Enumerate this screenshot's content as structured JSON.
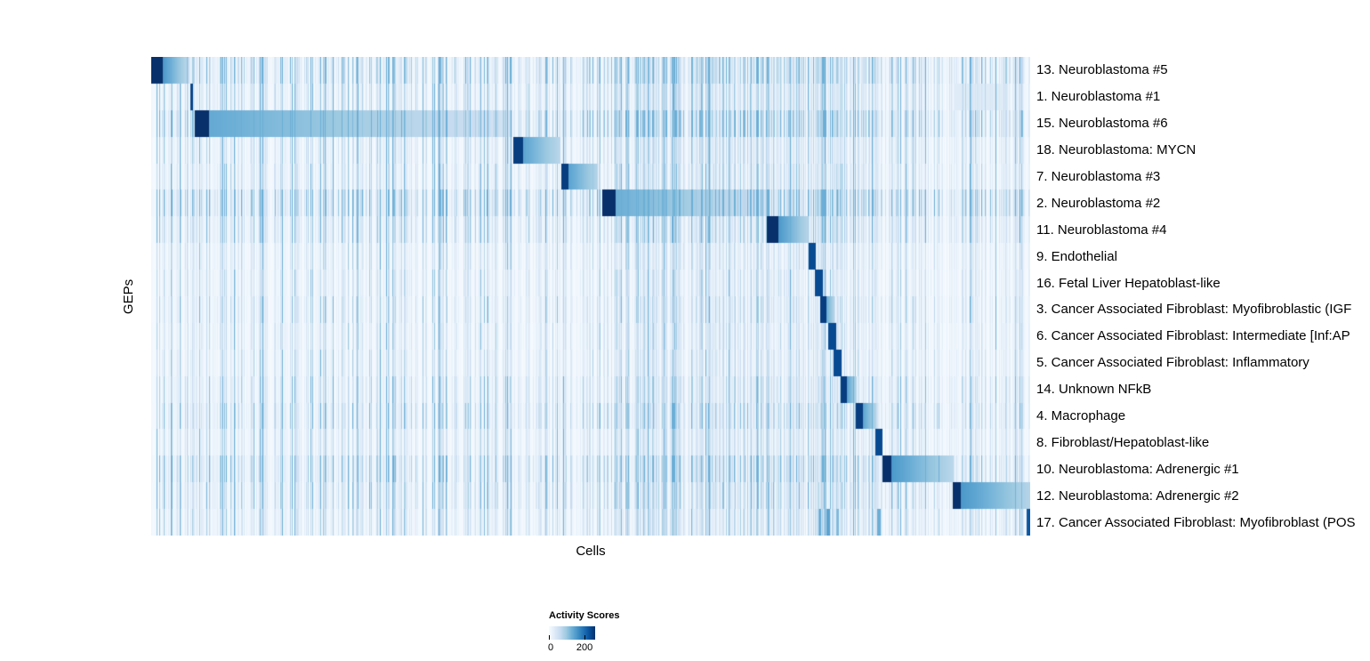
{
  "chart_data": {
    "type": "heatmap",
    "title": "",
    "xlabel": "Cells",
    "ylabel": "GEPs",
    "legend_position": "bottom",
    "colorbar": {
      "title": "Activity Scores",
      "min": 0,
      "max": 200,
      "min_label": "0",
      "max_label": "200",
      "max_label_frac": 0.77,
      "colormap": "Blues",
      "stops": [
        "#f7fbff",
        "#deebf7",
        "#c6dbef",
        "#9ecae1",
        "#6baed6",
        "#4292c6",
        "#2171b5",
        "#08519c",
        "#08306b"
      ]
    },
    "noise_bands": [
      {
        "start": 0.0,
        "end": 0.513,
        "level": 0.22,
        "pow": 4
      },
      {
        "start": 0.513,
        "end": 0.7,
        "level": 0.32,
        "pow": 2.5
      },
      {
        "start": 0.7,
        "end": 0.87,
        "level": 0.3,
        "pow": 2.5
      },
      {
        "start": 0.87,
        "end": 1.0,
        "level": 0.26,
        "pow": 3
      }
    ],
    "rows": [
      {
        "label": "13. Neuroblastoma #5",
        "start": 0.0,
        "end": 0.044,
        "head": 0.3,
        "peak": 1.0,
        "tail_hi": 0.6,
        "tail_lo": 0.25,
        "noise": 1.5
      },
      {
        "label": "1. Neuroblastoma #1",
        "start": 0.0445,
        "end": 0.0478,
        "head": 1.0,
        "peak": 0.92,
        "tail_hi": 0.92,
        "tail_lo": 0.92,
        "noise": 1.1,
        "marks": [
          {
            "pos": 0.945,
            "w": 0.06,
            "val": 0.12
          }
        ]
      },
      {
        "label": "15. Neuroblastoma #6",
        "start": 0.0496,
        "end": 0.411,
        "head": 0.045,
        "peak": 1.0,
        "tail_hi": 0.52,
        "tail_lo": 0.18,
        "noise": 1.7
      },
      {
        "label": "18. Neuroblastoma: MYCN",
        "start": 0.412,
        "end": 0.4656,
        "head": 0.2,
        "peak": 0.95,
        "tail_hi": 0.55,
        "tail_lo": 0.28,
        "noise": 1.0
      },
      {
        "label": "7. Neuroblastoma #3",
        "start": 0.4666,
        "end": 0.5081,
        "head": 0.2,
        "peak": 0.95,
        "tail_hi": 0.55,
        "tail_lo": 0.3,
        "noise": 1.0
      },
      {
        "label": "2. Neuroblastoma #2",
        "start": 0.5132,
        "end": 0.6994,
        "head": 0.08,
        "peak": 1.0,
        "tail_hi": 0.5,
        "tail_lo": 0.2,
        "noise": 1.8
      },
      {
        "label": "11. Neuroblastoma #4",
        "start": 0.7004,
        "end": 0.747,
        "head": 0.28,
        "peak": 1.0,
        "tail_hi": 0.6,
        "tail_lo": 0.3,
        "noise": 1.2
      },
      {
        "label": "9. Endothelial",
        "start": 0.748,
        "end": 0.7561,
        "head": 1.0,
        "peak": 0.9,
        "tail_hi": 0.9,
        "tail_lo": 0.9,
        "noise": 0.8
      },
      {
        "label": "16. Fetal Liver Hepatoblast-like",
        "start": 0.7551,
        "end": 0.7642,
        "head": 1.0,
        "peak": 0.9,
        "tail_hi": 0.9,
        "tail_lo": 0.9,
        "noise": 0.8
      },
      {
        "label": "3. Cancer Associated Fibroblast: Myofibroblastic (IGF",
        "start": 0.7611,
        "end": 0.7773,
        "head": 0.45,
        "peak": 0.95,
        "tail_hi": 0.5,
        "tail_lo": 0.3,
        "noise": 0.9
      },
      {
        "label": "6. Cancer Associated Fibroblast: Intermediate [Inf:AP",
        "start": 0.7702,
        "end": 0.7793,
        "head": 1.0,
        "peak": 0.9,
        "tail_hi": 0.9,
        "tail_lo": 0.9,
        "noise": 0.8
      },
      {
        "label": "5. Cancer Associated Fibroblast: Inflammatory",
        "start": 0.7763,
        "end": 0.7854,
        "head": 1.0,
        "peak": 0.9,
        "tail_hi": 0.9,
        "tail_lo": 0.9,
        "noise": 0.8
      },
      {
        "label": "14. Unknown NFkB",
        "start": 0.7844,
        "end": 0.8026,
        "head": 0.4,
        "peak": 0.95,
        "tail_hi": 0.55,
        "tail_lo": 0.3,
        "noise": 1.0
      },
      {
        "label": "4. Macrophage",
        "start": 0.8016,
        "end": 0.8249,
        "head": 0.35,
        "peak": 0.95,
        "tail_hi": 0.55,
        "tail_lo": 0.3,
        "noise": 1.2
      },
      {
        "label": "8. Fibroblast/Hepatoblast-like",
        "start": 0.8239,
        "end": 0.832,
        "head": 1.0,
        "peak": 0.9,
        "tail_hi": 0.9,
        "tail_lo": 0.9,
        "noise": 0.9
      },
      {
        "label": "10. Neuroblastoma: Adrenergic #1",
        "start": 0.832,
        "end": 0.913,
        "head": 0.12,
        "peak": 1.0,
        "tail_hi": 0.6,
        "tail_lo": 0.28,
        "noise": 1.4
      },
      {
        "label": "12. Neuroblastoma: Adrenergic #2",
        "start": 0.912,
        "end": 1.0,
        "head": 0.1,
        "peak": 1.0,
        "tail_hi": 0.6,
        "tail_lo": 0.3,
        "noise": 1.2
      },
      {
        "label": "17. Cancer Associated Fibroblast: Myofibroblast (POS",
        "start": 0,
        "end": 0,
        "head": 0,
        "peak": 0,
        "tail_hi": 0,
        "tail_lo": 0,
        "noise": 1.0,
        "marks": [
          {
            "pos": 0.761,
            "w": 0.003,
            "val": 0.5
          },
          {
            "pos": 0.77,
            "w": 0.004,
            "val": 0.55
          },
          {
            "pos": 0.781,
            "w": 0.003,
            "val": 0.45
          },
          {
            "pos": 0.828,
            "w": 0.004,
            "val": 0.5
          },
          {
            "pos": 0.998,
            "w": 0.004,
            "val": 0.85
          }
        ]
      }
    ]
  }
}
